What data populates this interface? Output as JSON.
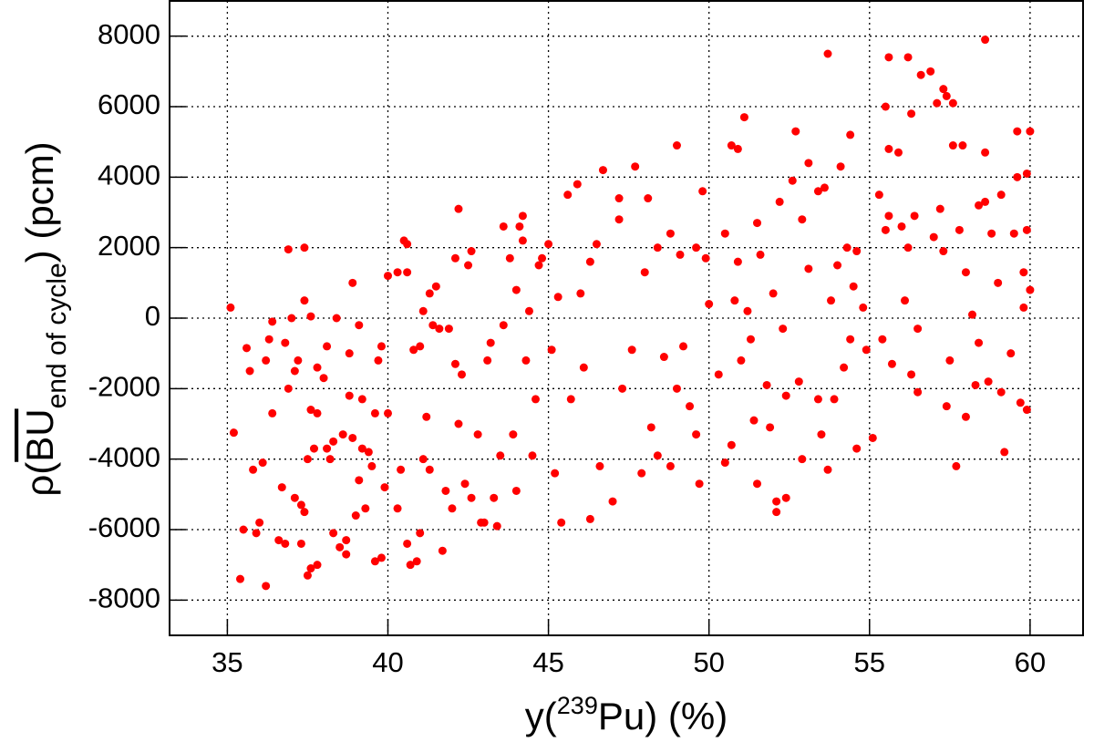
{
  "chart_data": {
    "type": "scatter",
    "xlabel": {
      "prefix": "y(",
      "superscript": "239",
      "main": "Pu",
      "suffix": ") (%)"
    },
    "ylabel": {
      "prefix": "ρ(",
      "main": "BU",
      "subscript": "end of cycle",
      "suffix": ") (pcm)"
    },
    "color": "#ff0000",
    "grid": true,
    "xlim": [
      33.2,
      61.65
    ],
    "ylim": [
      -9000,
      9000
    ],
    "xticks": [
      35,
      40,
      45,
      50,
      55,
      60
    ],
    "yticks": [
      -8000,
      -6000,
      -4000,
      -2000,
      0,
      2000,
      4000,
      6000,
      8000
    ],
    "x": [
      35.1,
      35.2,
      35.4,
      35.5,
      35.6,
      35.7,
      35.8,
      35.9,
      36.0,
      36.1,
      36.2,
      36.2,
      36.3,
      36.4,
      36.4,
      36.6,
      36.7,
      36.8,
      36.8,
      36.9,
      37.0,
      36.9,
      37.1,
      37.1,
      37.2,
      37.3,
      37.3,
      37.4,
      37.5,
      37.4,
      37.5,
      37.6,
      37.4,
      37.6,
      37.7,
      37.6,
      37.8,
      37.8,
      37.8,
      38.0,
      38.1,
      38.2,
      38.1,
      38.3,
      38.3,
      38.4,
      38.6,
      38.5,
      38.7,
      38.8,
      38.9,
      38.7,
      38.8,
      38.9,
      39.1,
      39.0,
      39.2,
      39.1,
      39.3,
      39.2,
      39.4,
      39.5,
      39.6,
      39.7,
      39.6,
      39.8,
      39.8,
      39.9,
      40.0,
      40.0,
      40.3,
      40.6,
      40.5,
      40.6,
      40.3,
      40.4,
      40.6,
      40.7,
      40.9,
      41.0,
      40.8,
      41.0,
      41.1,
      41.2,
      41.3,
      41.1,
      41.3,
      41.5,
      41.4,
      41.6,
      41.7,
      41.8,
      41.9,
      42.0,
      42.1,
      42.1,
      42.2,
      42.3,
      42.4,
      42.2,
      42.5,
      42.6,
      42.6,
      42.8,
      42.9,
      43.0,
      43.1,
      43.2,
      43.3,
      43.4,
      43.5,
      43.6,
      43.6,
      43.8,
      43.9,
      44.0,
      44.0,
      44.2,
      44.1,
      44.2,
      44.3,
      44.4,
      44.5,
      44.6,
      44.7,
      44.8,
      45.0,
      45.1,
      45.2,
      45.3,
      45.4,
      45.6,
      45.7,
      45.9,
      46.0,
      46.1,
      46.3,
      46.3,
      46.5,
      46.6,
      46.7,
      47.0,
      47.2,
      47.2,
      47.3,
      47.7,
      47.6,
      47.9,
      48.0,
      48.1,
      48.2,
      48.4,
      48.4,
      48.6,
      48.8,
      48.8,
      49.0,
      49.1,
      49.2,
      49.0,
      49.4,
      49.6,
      49.6,
      49.8,
      49.7,
      49.9,
      50.0,
      50.3,
      50.5,
      50.5,
      50.8,
      50.7,
      50.7,
      50.9,
      51.0,
      50.9,
      51.1,
      51.2,
      51.3,
      51.4,
      51.5,
      51.5,
      51.6,
      51.8,
      51.9,
      52.0,
      52.1,
      52.1,
      52.2,
      52.3,
      52.4,
      52.4,
      52.6,
      52.7,
      52.8,
      52.9,
      52.9,
      53.1,
      53.1,
      53.4,
      53.4,
      53.5,
      53.6,
      53.7,
      53.8,
      53.7,
      53.9,
      54.0,
      54.1,
      54.2,
      54.3,
      54.4,
      54.4,
      54.5,
      54.6,
      54.6,
      54.8,
      54.9,
      55.1,
      55.3,
      55.4,
      55.5,
      55.5,
      55.6,
      55.6,
      55.7,
      55.6,
      55.9,
      56.0,
      56.1,
      56.2,
      56.2,
      56.3,
      56.3,
      56.4,
      56.5,
      56.6,
      56.5,
      56.9,
      57.0,
      57.1,
      57.2,
      57.3,
      57.3,
      57.4,
      57.5,
      57.6,
      57.4,
      57.6,
      57.7,
      57.8,
      57.9,
      58.0,
      58.0,
      58.2,
      58.3,
      58.4,
      58.4,
      58.6,
      58.6,
      58.6,
      58.7,
      58.8,
      59.0,
      59.1,
      59.2,
      59.1,
      59.4,
      59.5,
      59.6,
      59.6,
      59.7,
      59.8,
      59.8,
      59.9,
      59.9,
      59.9,
      60.0,
      60.0
    ],
    "values": [
      300,
      -3250,
      -7400,
      -6000,
      -850,
      -1500,
      -4300,
      -6100,
      -5800,
      -4100,
      -7600,
      -1200,
      -600,
      -100,
      -2700,
      -6300,
      -4800,
      -6400,
      -700,
      -2000,
      0,
      1950,
      -1500,
      -5100,
      -1200,
      -6400,
      -5300,
      -5500,
      -4000,
      500,
      -7300,
      -7100,
      2000,
      -2600,
      -3700,
      50,
      -1400,
      -2700,
      -7000,
      -1700,
      -3700,
      -4000,
      -800,
      -3500,
      -6100,
      0,
      -3300,
      -6500,
      -6300,
      -2200,
      -3400,
      -6700,
      -1000,
      1000,
      -4600,
      -5600,
      -2300,
      -200,
      -5400,
      -3700,
      -3800,
      -4200,
      -2700,
      -1200,
      -6900,
      -800,
      -6800,
      -4800,
      -2700,
      1200,
      1300,
      1300,
      2200,
      2100,
      -5400,
      -4300,
      -6400,
      -7000,
      -6900,
      -6100,
      -900,
      -800,
      -4000,
      -2800,
      -4300,
      200,
      700,
      900,
      -200,
      -300,
      -6600,
      -4900,
      -300,
      -5400,
      -1300,
      1700,
      -3000,
      -1600,
      -4700,
      3100,
      1500,
      -5100,
      1900,
      -3300,
      -5800,
      -5800,
      -1200,
      -700,
      -5100,
      -5900,
      -3900,
      -200,
      2600,
      1700,
      -3300,
      -4900,
      800,
      2200,
      2600,
      2900,
      -1200,
      200,
      -3900,
      -2300,
      1500,
      1700,
      2100,
      -900,
      -4400,
      600,
      -5800,
      3500,
      -2300,
      3800,
      700,
      -1400,
      1600,
      -5700,
      2100,
      -4200,
      4200,
      -5200,
      3400,
      2800,
      -2000,
      4300,
      -900,
      -4400,
      1300,
      3400,
      -3100,
      2000,
      -3900,
      -1100,
      2400,
      -4200,
      -2000,
      1800,
      -800,
      4900,
      -2500,
      2000,
      -3300,
      3600,
      -4700,
      1700,
      400,
      -1600,
      2400,
      -4100,
      500,
      -3600,
      4900,
      1600,
      -1200,
      4800,
      5700,
      200,
      -600,
      -2900,
      2700,
      -4700,
      1800,
      -1900,
      -3100,
      700,
      -5200,
      -5500,
      3300,
      -300,
      -2200,
      -5100,
      3900,
      5300,
      -1800,
      2800,
      -4000,
      4400,
      1400,
      3600,
      -2300,
      -3300,
      3700,
      -4300,
      500,
      7500,
      -2300,
      1500,
      4300,
      -1400,
      2000,
      -600,
      5200,
      900,
      -3700,
      1900,
      300,
      -900,
      -3400,
      3500,
      -600,
      2500,
      6000,
      2900,
      7400,
      -1300,
      4800,
      4700,
      2600,
      500,
      2000,
      7400,
      -1600,
      5800,
      2900,
      -2100,
      6900,
      -300,
      7000,
      2300,
      6100,
      3100,
      6500,
      1900,
      6300,
      -1200,
      6100,
      -2500,
      4900,
      -4200,
      2500,
      4900,
      -2800,
      1300,
      100,
      -1900,
      3200,
      -700,
      3300,
      7900,
      4700,
      -1800,
      2400,
      1000,
      3500,
      -3800,
      -2100,
      -1000,
      2400,
      4000,
      5300,
      -2400,
      300,
      1300,
      4100,
      -2600,
      2500,
      800,
      5300
    ]
  }
}
